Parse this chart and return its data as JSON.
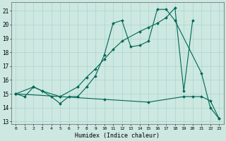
{
  "xlabel": "Humidex (Indice chaleur)",
  "bg_color": "#cce8e0",
  "grid_color": "#aad4cc",
  "line_color": "#006655",
  "xlim": [
    -0.5,
    23.5
  ],
  "ylim": [
    12.8,
    21.6
  ],
  "yticks": [
    13,
    14,
    15,
    16,
    17,
    18,
    19,
    20,
    21
  ],
  "xticks": [
    0,
    1,
    2,
    3,
    4,
    5,
    6,
    7,
    8,
    9,
    10,
    11,
    12,
    13,
    14,
    15,
    16,
    17,
    18,
    19,
    20,
    21,
    22,
    23
  ],
  "line1_x": [
    0,
    1,
    2,
    3,
    4,
    5,
    6,
    7,
    8,
    9,
    10,
    11,
    12,
    13,
    14,
    15,
    16,
    17,
    18,
    21,
    22,
    23
  ],
  "line1_y": [
    15,
    14.8,
    15.5,
    15.2,
    14.8,
    14.3,
    14.8,
    14.8,
    15.5,
    16.3,
    17.8,
    20.1,
    20.3,
    18.4,
    18.5,
    18.8,
    21.1,
    21.1,
    20.3,
    16.5,
    14.0,
    13.2
  ],
  "line2_x": [
    0,
    2,
    3,
    5,
    7,
    8,
    9,
    10,
    11,
    12,
    14,
    15,
    16,
    17,
    18,
    19,
    20
  ],
  "line2_y": [
    15,
    15.5,
    15.2,
    14.8,
    15.5,
    16.2,
    16.8,
    17.5,
    18.2,
    18.8,
    19.5,
    19.8,
    20.1,
    20.5,
    21.2,
    15.2,
    20.3
  ],
  "line3_x": [
    0,
    5,
    10,
    15,
    19,
    20,
    21,
    22,
    23
  ],
  "line3_y": [
    15.0,
    14.8,
    14.6,
    14.4,
    14.8,
    14.8,
    14.8,
    14.5,
    13.2
  ],
  "figw": 3.2,
  "figh": 2.0,
  "dpi": 100
}
